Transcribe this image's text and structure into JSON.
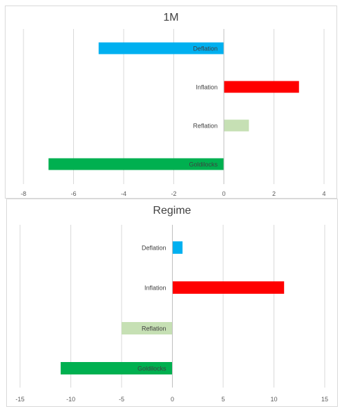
{
  "chart_data": [
    {
      "type": "bar",
      "orientation": "horizontal",
      "title": "1M",
      "categories": [
        "Deflation",
        "Inflation",
        "Reflation",
        "Goldilocks"
      ],
      "values": [
        -5,
        3,
        1,
        -7
      ],
      "colors": [
        "#00b0f0",
        "#ff0000",
        "#c6e0b4",
        "#00b050"
      ],
      "xlim": [
        -8,
        4
      ],
      "xticks": [
        -8,
        -6,
        -4,
        -2,
        0,
        2,
        4
      ],
      "grid": true,
      "legend": "none"
    },
    {
      "type": "bar",
      "orientation": "horizontal",
      "title": "Regime",
      "categories": [
        "Deflation",
        "Inflation",
        "Reflation",
        "Goldilocks"
      ],
      "values": [
        1,
        11,
        -5,
        -11
      ],
      "colors": [
        "#00b0f0",
        "#ff0000",
        "#c6e0b4",
        "#00b050"
      ],
      "xlim": [
        -15,
        15
      ],
      "xticks": [
        -15,
        -10,
        -5,
        0,
        5,
        10,
        15
      ],
      "grid": true,
      "legend": "none"
    }
  ]
}
